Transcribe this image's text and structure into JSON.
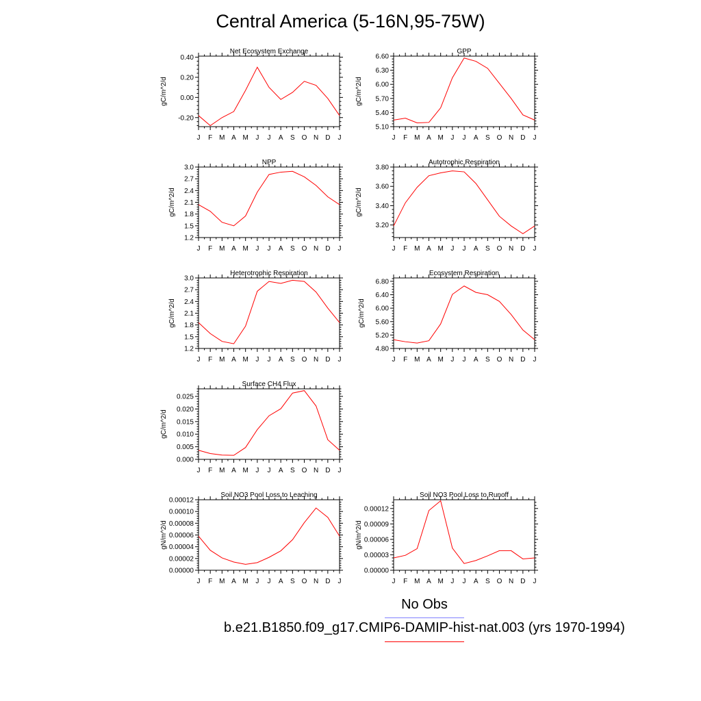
{
  "title": "Central America (5-16N,95-75W)",
  "legend": {
    "obs_label": "No Obs",
    "obs_color": "#8080ff",
    "model_label": "b.e21.B1850.f09_g17.CMIP6-DAMIP-hist-nat.003 (yrs 1970-1994)",
    "model_color": "#ff0000"
  },
  "chart_data": [
    {
      "type": "line",
      "title": "Net Ecosystem Exchange",
      "ylabel": "gC/m^2/d",
      "x": [
        "J",
        "F",
        "M",
        "A",
        "M",
        "J",
        "J",
        "A",
        "S",
        "O",
        "N",
        "D",
        "J"
      ],
      "ylim": [
        -0.29,
        0.41
      ],
      "yticks": [
        -0.2,
        0.0,
        0.2,
        0.4
      ],
      "ytick_labels": [
        "-0.20",
        "0.00",
        "0.20",
        "0.40"
      ],
      "series": [
        {
          "values": [
            -0.18,
            -0.28,
            -0.2,
            -0.14,
            0.07,
            0.3,
            0.1,
            -0.02,
            0.05,
            0.16,
            0.12,
            -0.01,
            -0.18
          ]
        }
      ]
    },
    {
      "type": "line",
      "title": "GPP",
      "ylabel": "gC/m^2/d",
      "x": [
        "J",
        "F",
        "M",
        "A",
        "M",
        "J",
        "J",
        "A",
        "S",
        "O",
        "N",
        "D",
        "J"
      ],
      "ylim": [
        5.1,
        6.6
      ],
      "yticks": [
        5.1,
        5.4,
        5.7,
        6.0,
        6.3,
        6.6
      ],
      "ytick_labels": [
        "5.10",
        "5.40",
        "5.70",
        "6.00",
        "6.30",
        "6.60"
      ],
      "series": [
        {
          "values": [
            5.24,
            5.28,
            5.18,
            5.19,
            5.5,
            6.14,
            6.56,
            6.49,
            6.34,
            6.02,
            5.7,
            5.35,
            5.24
          ]
        }
      ]
    },
    {
      "type": "line",
      "title": "NPP",
      "ylabel": "gC/m^2/d",
      "x": [
        "J",
        "F",
        "M",
        "A",
        "M",
        "J",
        "J",
        "A",
        "S",
        "O",
        "N",
        "D",
        "J"
      ],
      "ylim": [
        1.2,
        3.0
      ],
      "yticks": [
        1.2,
        1.5,
        1.8,
        2.1,
        2.4,
        2.7,
        3.0
      ],
      "ytick_labels": [
        "1.2",
        "1.5",
        "1.8",
        "2.1",
        "2.4",
        "2.7",
        "3.0"
      ],
      "series": [
        {
          "values": [
            2.04,
            1.87,
            1.59,
            1.5,
            1.75,
            2.36,
            2.81,
            2.87,
            2.89,
            2.75,
            2.53,
            2.24,
            2.04
          ]
        }
      ]
    },
    {
      "type": "line",
      "title": "Autotrophic Respiration",
      "ylabel": "gC/m^2/d",
      "x": [
        "J",
        "F",
        "M",
        "A",
        "M",
        "J",
        "J",
        "A",
        "S",
        "O",
        "N",
        "D",
        "J"
      ],
      "ylim": [
        3.07,
        3.8
      ],
      "yticks": [
        3.2,
        3.4,
        3.6,
        3.8
      ],
      "ytick_labels": [
        "3.20",
        "3.40",
        "3.60",
        "3.80"
      ],
      "series": [
        {
          "values": [
            3.19,
            3.43,
            3.59,
            3.71,
            3.74,
            3.76,
            3.75,
            3.63,
            3.46,
            3.29,
            3.19,
            3.11,
            3.19
          ]
        }
      ]
    },
    {
      "type": "line",
      "title": "Heterotrophic Respiration",
      "ylabel": "gC/m^2/d",
      "x": [
        "J",
        "F",
        "M",
        "A",
        "M",
        "J",
        "J",
        "A",
        "S",
        "O",
        "N",
        "D",
        "J"
      ],
      "ylim": [
        1.2,
        3.0
      ],
      "yticks": [
        1.2,
        1.5,
        1.8,
        2.1,
        2.4,
        2.7,
        3.0
      ],
      "ytick_labels": [
        "1.2",
        "1.5",
        "1.8",
        "2.1",
        "2.4",
        "2.7",
        "3.0"
      ],
      "series": [
        {
          "values": [
            1.86,
            1.58,
            1.38,
            1.32,
            1.77,
            2.66,
            2.91,
            2.86,
            2.94,
            2.91,
            2.64,
            2.23,
            1.86
          ]
        }
      ]
    },
    {
      "type": "line",
      "title": "Ecosystem Respiration",
      "ylabel": "gC/m^2/d",
      "x": [
        "J",
        "F",
        "M",
        "A",
        "M",
        "J",
        "J",
        "A",
        "S",
        "O",
        "N",
        "D",
        "J"
      ],
      "ylim": [
        4.8,
        6.9
      ],
      "yticks": [
        4.8,
        5.2,
        5.6,
        6.0,
        6.4,
        6.8
      ],
      "ytick_labels": [
        "4.80",
        "5.20",
        "5.60",
        "6.00",
        "6.40",
        "6.80"
      ],
      "series": [
        {
          "values": [
            5.06,
            5.0,
            4.96,
            5.03,
            5.53,
            6.41,
            6.66,
            6.47,
            6.4,
            6.2,
            5.81,
            5.35,
            5.06
          ]
        }
      ]
    },
    {
      "type": "line",
      "title": "Surface CH4 Flux",
      "ylabel": "gC/m^2/d",
      "x": [
        "J",
        "F",
        "M",
        "A",
        "M",
        "J",
        "J",
        "A",
        "S",
        "O",
        "N",
        "D",
        "J"
      ],
      "ylim": [
        0.0,
        0.028
      ],
      "yticks": [
        0.0,
        0.005,
        0.01,
        0.015,
        0.02,
        0.025
      ],
      "ytick_labels": [
        "0.000",
        "0.005",
        "0.010",
        "0.015",
        "0.020",
        "0.025"
      ],
      "series": [
        {
          "values": [
            0.0036,
            0.0023,
            0.0017,
            0.0016,
            0.0047,
            0.0118,
            0.0173,
            0.0201,
            0.0263,
            0.0273,
            0.0212,
            0.0078,
            0.0036
          ]
        }
      ]
    },
    {
      "type": "line",
      "title": "Soil NO3 Pool Loss to Leaching",
      "ylabel": "gN/m^2/d",
      "x": [
        "J",
        "F",
        "M",
        "A",
        "M",
        "J",
        "J",
        "A",
        "S",
        "O",
        "N",
        "D",
        "J"
      ],
      "ylim": [
        0.0,
        0.00012
      ],
      "yticks": [
        0.0,
        2e-05,
        4e-05,
        6e-05,
        8e-05,
        0.0001,
        0.00012
      ],
      "ytick_labels": [
        "0.00000",
        "0.00002",
        "0.00004",
        "0.00006",
        "0.00008",
        "0.00010",
        "0.00012"
      ],
      "series": [
        {
          "values": [
            5.8e-05,
            3.4e-05,
            2.1e-05,
            1.4e-05,
            1e-05,
            1.3e-05,
            2.2e-05,
            3.3e-05,
            5.2e-05,
            8.1e-05,
            0.000106,
            9e-05,
            5.8e-05
          ]
        }
      ]
    },
    {
      "type": "line",
      "title": "Soil NO3 Pool Loss to Runoff",
      "ylabel": "gN/m^2/d",
      "x": [
        "J",
        "F",
        "M",
        "A",
        "M",
        "J",
        "J",
        "A",
        "S",
        "O",
        "N",
        "D",
        "J"
      ],
      "ylim": [
        0.0,
        0.000137
      ],
      "yticks": [
        0.0,
        3e-05,
        6e-05,
        9e-05,
        0.00012
      ],
      "ytick_labels": [
        "0.00000",
        "0.00003",
        "0.00006",
        "0.00009",
        "0.00012"
      ],
      "series": [
        {
          "values": [
            2.4e-05,
            2.9e-05,
            4.2e-05,
            0.000116,
            0.000135,
            4.3e-05,
            1.3e-05,
            1.9e-05,
            2.8e-05,
            3.8e-05,
            3.8e-05,
            2.2e-05,
            2.4e-05
          ]
        }
      ]
    }
  ]
}
